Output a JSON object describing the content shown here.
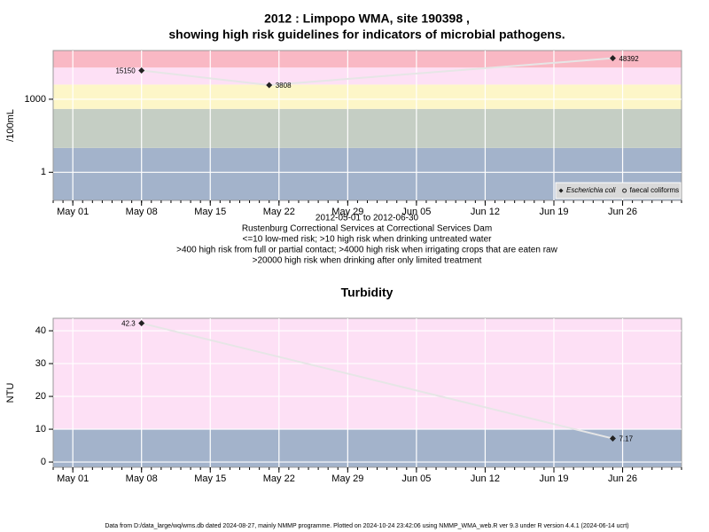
{
  "chart_data": [
    {
      "type": "line",
      "title": [
        "2012 : Limpopo WMA, site 190398 ,",
        "showing high risk guidelines for indicators of microbial pathogens."
      ],
      "y_label": "/100mL",
      "notes": [
        "2012-05-01 to 2012-06-30",
        "Rustenburg Correctional Services at Correctional Services Dam",
        "<=10 low-med risk; >10 high risk when drinking untreated water",
        ">400 high risk from full or partial contact; >4000 high risk when irrigating crops that are eaten raw",
        ">20000 high risk when drinking after only limited treatment"
      ],
      "x": [
        "2012-05-08",
        "2012-05-21",
        "2012-06-25"
      ],
      "series": [
        {
          "name": "Escherichia coli",
          "color": "#222222",
          "marker": "diamond",
          "values": [
            15150,
            3808,
            48392
          ]
        },
        {
          "name": "faecal coliforms",
          "color": "#222222",
          "marker": "circle",
          "values": [
            null,
            null,
            null
          ]
        }
      ],
      "log_scale": true,
      "xlim": [
        "2012-04-29",
        "2012-07-02"
      ],
      "ylim": [
        0.07,
        100000
      ],
      "yticks": [
        1,
        1000
      ],
      "xticks": [
        {
          "value": "2012-05-01",
          "label": "May 01"
        },
        {
          "value": "2012-05-08",
          "label": "May 08"
        },
        {
          "value": "2012-05-15",
          "label": "May 15"
        },
        {
          "value": "2012-05-22",
          "label": "May 22"
        },
        {
          "value": "2012-05-29",
          "label": "May 29"
        },
        {
          "value": "2012-06-05",
          "label": "Jun 05"
        },
        {
          "value": "2012-06-12",
          "label": "Jun 12"
        },
        {
          "value": "2012-06-19",
          "label": "Jun 19"
        },
        {
          "value": "2012-06-26",
          "label": "Jun 26"
        }
      ],
      "bands": {
        "breaks": [
          10,
          400,
          4000,
          20000
        ],
        "colors": [
          "#a3b3cb",
          "#c5cec4",
          "#fdf6c8",
          "#fde0f5",
          "#f9b8c4"
        ]
      },
      "grid": true,
      "legend": "bottom-right"
    },
    {
      "type": "line",
      "title": [
        "Turbidity"
      ],
      "y_label": "NTU",
      "x": [
        "2012-05-08",
        "2012-06-25"
      ],
      "series": [
        {
          "name": "Turbidity",
          "color": "#222222",
          "marker": "diamond",
          "values": [
            42.3,
            7.17
          ]
        }
      ],
      "log_scale": false,
      "xlim": [
        "2012-04-29",
        "2012-07-02"
      ],
      "ylim": [
        -1.6,
        43.8
      ],
      "yticks": [
        0,
        10,
        20,
        30,
        40
      ],
      "xticks": [
        {
          "value": "2012-05-01",
          "label": "May 01"
        },
        {
          "value": "2012-05-08",
          "label": "May 08"
        },
        {
          "value": "2012-05-15",
          "label": "May 15"
        },
        {
          "value": "2012-05-22",
          "label": "May 22"
        },
        {
          "value": "2012-05-29",
          "label": "May 29"
        },
        {
          "value": "2012-06-05",
          "label": "Jun 05"
        },
        {
          "value": "2012-06-12",
          "label": "Jun 12"
        },
        {
          "value": "2012-06-19",
          "label": "Jun 19"
        },
        {
          "value": "2012-06-26",
          "label": "Jun 26"
        }
      ],
      "bands": {
        "breaks": [
          10
        ],
        "colors": [
          "#a3b3cb",
          "#fde0f5"
        ]
      },
      "grid": true
    }
  ],
  "footer": "Data from D:/data_large/wq/wms.db dated 2024-08-27, mainly NMMP programme. Plotted on 2024-10-24 23:42:06 using NMMP_WMA_web.R ver 9.3 under R version 4.4.1 (2024-06-14 ucrt)"
}
